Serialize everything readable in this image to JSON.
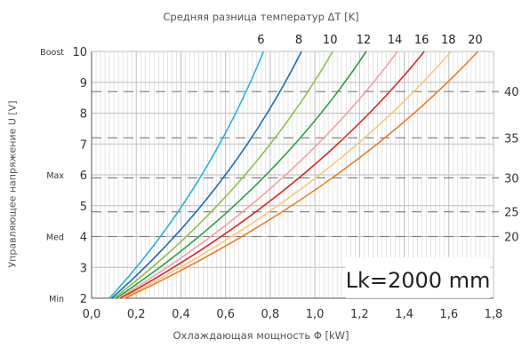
{
  "chart_data": {
    "type": "line",
    "title": "Средняя разница температур ΔT [K]",
    "xlabel": "Охлаждающая мощность  Φ [kW]",
    "ylabel": "Управляющее напряжение  U [V]",
    "annotation": "Lk=2000 mm",
    "xlim": [
      0.0,
      1.8
    ],
    "ylim": [
      2,
      10
    ],
    "x_ticks": [
      "0,0",
      "0,2",
      "0,4",
      "0,6",
      "0,8",
      "1,0",
      "1,2",
      "1,4",
      "1,6",
      "1,8"
    ],
    "y_ticks": [
      "2",
      "3",
      "4",
      "5",
      "6",
      "7",
      "8",
      "9",
      "10"
    ],
    "y_tick_values": [
      2,
      3,
      4,
      5,
      6,
      7,
      8,
      9,
      10
    ],
    "left_mode_labels": [
      {
        "label": "Min",
        "value": 2
      },
      {
        "label": "Med",
        "value": 4
      },
      {
        "label": "Max",
        "value": 6
      },
      {
        "label": "Boost",
        "value": 10
      }
    ],
    "right_scale": [
      {
        "label": "20",
        "value": 4.0
      },
      {
        "label": "25",
        "value": 4.8
      },
      {
        "label": "30",
        "value": 5.9
      },
      {
        "label": "35",
        "value": 7.2
      },
      {
        "label": "40",
        "value": 8.7
      }
    ],
    "grid": true,
    "series": [
      {
        "name": "6",
        "color": "#2ab0dc",
        "x": [
          0.08,
          0.77
        ],
        "y": [
          2,
          10
        ]
      },
      {
        "name": "8",
        "color": "#1f6fae",
        "x": [
          0.09,
          0.94
        ],
        "y": [
          2,
          10
        ]
      },
      {
        "name": "10",
        "color": "#8dc04a",
        "x": [
          0.1,
          1.08
        ],
        "y": [
          2,
          10
        ]
      },
      {
        "name": "12",
        "color": "#2ea043",
        "x": [
          0.11,
          1.23
        ],
        "y": [
          2,
          10
        ]
      },
      {
        "name": "14",
        "color": "#f3a0a6",
        "x": [
          0.12,
          1.37
        ],
        "y": [
          2,
          10
        ]
      },
      {
        "name": "16",
        "color": "#d42a2a",
        "x": [
          0.13,
          1.49
        ],
        "y": [
          2,
          10
        ]
      },
      {
        "name": "18",
        "color": "#f5c87a",
        "x": [
          0.14,
          1.61
        ],
        "y": [
          2,
          10
        ]
      },
      {
        "name": "20",
        "color": "#e57f22",
        "x": [
          0.15,
          1.73
        ],
        "y": [
          2,
          10
        ]
      }
    ]
  }
}
